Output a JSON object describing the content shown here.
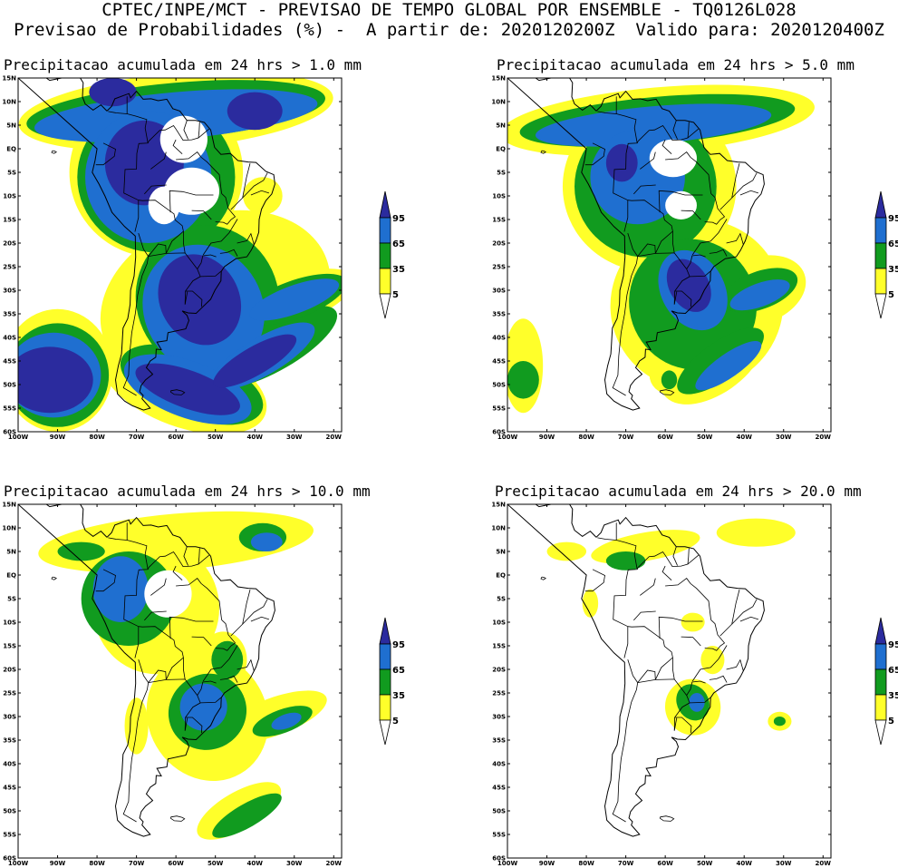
{
  "header": {
    "line1": "CPTEC/INPE/MCT - PREVISAO DE TEMPO GLOBAL POR ENSEMBLE - TQ0126L028",
    "line2": "Previsao de Probabilidades (%) -  A partir de: 2020120200Z  Valido para: 2020120400Z"
  },
  "axes": {
    "lat_labels": [
      "15N",
      "10N",
      "5N",
      "EQ",
      "5S",
      "10S",
      "15S",
      "20S",
      "25S",
      "30S",
      "35S",
      "40S",
      "45S",
      "50S",
      "55S",
      "60S"
    ],
    "lon_labels": [
      "100W",
      "90W",
      "80W",
      "70W",
      "60W",
      "50W",
      "40W",
      "30W",
      "20W"
    ]
  },
  "colorbar": {
    "levels": [
      "95",
      "65",
      "35",
      "5"
    ],
    "colors": {
      "c95": "#2b2b9e",
      "c65": "#1f6fd0",
      "c35": "#119b1f",
      "c5": "#ffff2a",
      "white": "#ffffff"
    }
  },
  "panels": [
    {
      "title": "Precipitacao acumulada em 24 hrs > 1.0 mm"
    },
    {
      "title": "Precipitacao acumulada em 24 hrs > 5.0 mm"
    },
    {
      "title": "Precipitacao acumulada em 24 hrs > 10.0 mm"
    },
    {
      "title": "Precipitacao acumulada em 24 hrs > 20.0 mm"
    }
  ]
}
